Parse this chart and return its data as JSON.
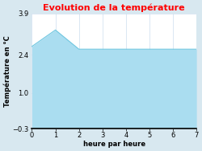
{
  "title": "Evolution de la température",
  "title_color": "#ff0000",
  "xlabel": "heure par heure",
  "ylabel": "Température en °C",
  "x": [
    0,
    1,
    2,
    3,
    4,
    5,
    6,
    7
  ],
  "y": [
    2.7,
    3.3,
    2.6,
    2.6,
    2.6,
    2.6,
    2.6,
    2.6
  ],
  "ylim": [
    -0.3,
    3.9
  ],
  "xlim": [
    0,
    7
  ],
  "yticks": [
    -0.3,
    1.0,
    2.4,
    3.9
  ],
  "xticks": [
    0,
    1,
    2,
    3,
    4,
    5,
    6,
    7
  ],
  "fill_color": "#aaddf0",
  "line_color": "#6ec6e0",
  "bg_color": "#d8e8f0",
  "plot_bg_color": "#ffffff",
  "grid_color": "#ccddee",
  "title_fontsize": 8,
  "label_fontsize": 6,
  "tick_fontsize": 6
}
